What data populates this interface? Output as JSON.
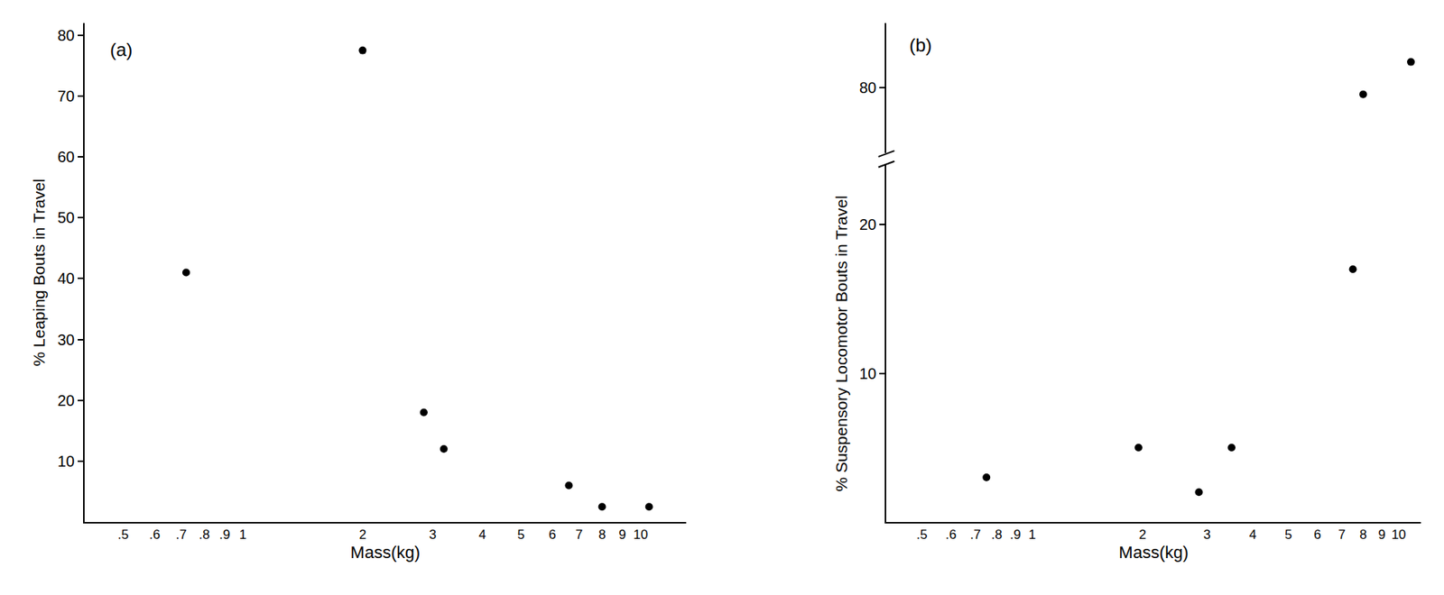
{
  "chart_data": [
    {
      "type": "scatter",
      "annotations": [
        "(a)"
      ],
      "x_label": "Mass(kg)",
      "y_label": "% Leaping Bouts in Travel",
      "log": "x",
      "grid": false,
      "marker": "circle",
      "color": "#000000",
      "x": [
        0.72,
        2.0,
        2.85,
        3.2,
        6.6,
        8.0,
        10.5
      ],
      "values": [
        41,
        77.5,
        18,
        12,
        6,
        2.5,
        2.5
      ],
      "xlim": [
        0.4,
        13
      ],
      "xticks": [
        {
          "value": 0.5,
          "label": ".5"
        },
        {
          "value": 0.6,
          "label": ".6"
        },
        {
          "value": 0.7,
          "label": ".7"
        },
        {
          "value": 0.8,
          "label": ".8"
        },
        {
          "value": 0.9,
          "label": ".9"
        },
        1,
        2,
        3,
        4,
        5,
        6,
        7,
        8,
        9,
        10
      ],
      "ylim": [
        0,
        82
      ],
      "yticks": [
        10,
        20,
        30,
        40,
        50,
        60,
        70,
        80
      ]
    },
    {
      "type": "scatter",
      "annotations": [
        "(b)"
      ],
      "x_label": "Mass(kg)",
      "y_label": "% Suspensory Locomotor Bouts in Travel",
      "log": "x",
      "grid": false,
      "marker": "circle",
      "color": "#000000",
      "series": [
        {
          "x": [
            0.75,
            1.95,
            2.85,
            3.5,
            7.5
          ],
          "values": [
            3,
            5,
            2,
            5,
            17
          ]
        },
        {
          "x": [
            8.0,
            10.8
          ],
          "values": [
            79.5,
            82
          ],
          "axis": "y2"
        }
      ],
      "xlim": [
        0.4,
        11.5
      ],
      "xticks": [
        {
          "value": 0.5,
          "label": ".5"
        },
        {
          "value": 0.6,
          "label": ".6"
        },
        {
          "value": 0.7,
          "label": ".7"
        },
        {
          "value": 0.8,
          "label": ".8"
        },
        {
          "value": 0.9,
          "label": ".9"
        },
        1,
        2,
        3,
        4,
        5,
        6,
        7,
        8,
        9,
        10
      ],
      "ylim": [
        0,
        24
      ],
      "yticks": [
        10,
        20
      ],
      "y2lim": [
        75,
        85
      ],
      "y2ticks": [
        80
      ]
    }
  ]
}
